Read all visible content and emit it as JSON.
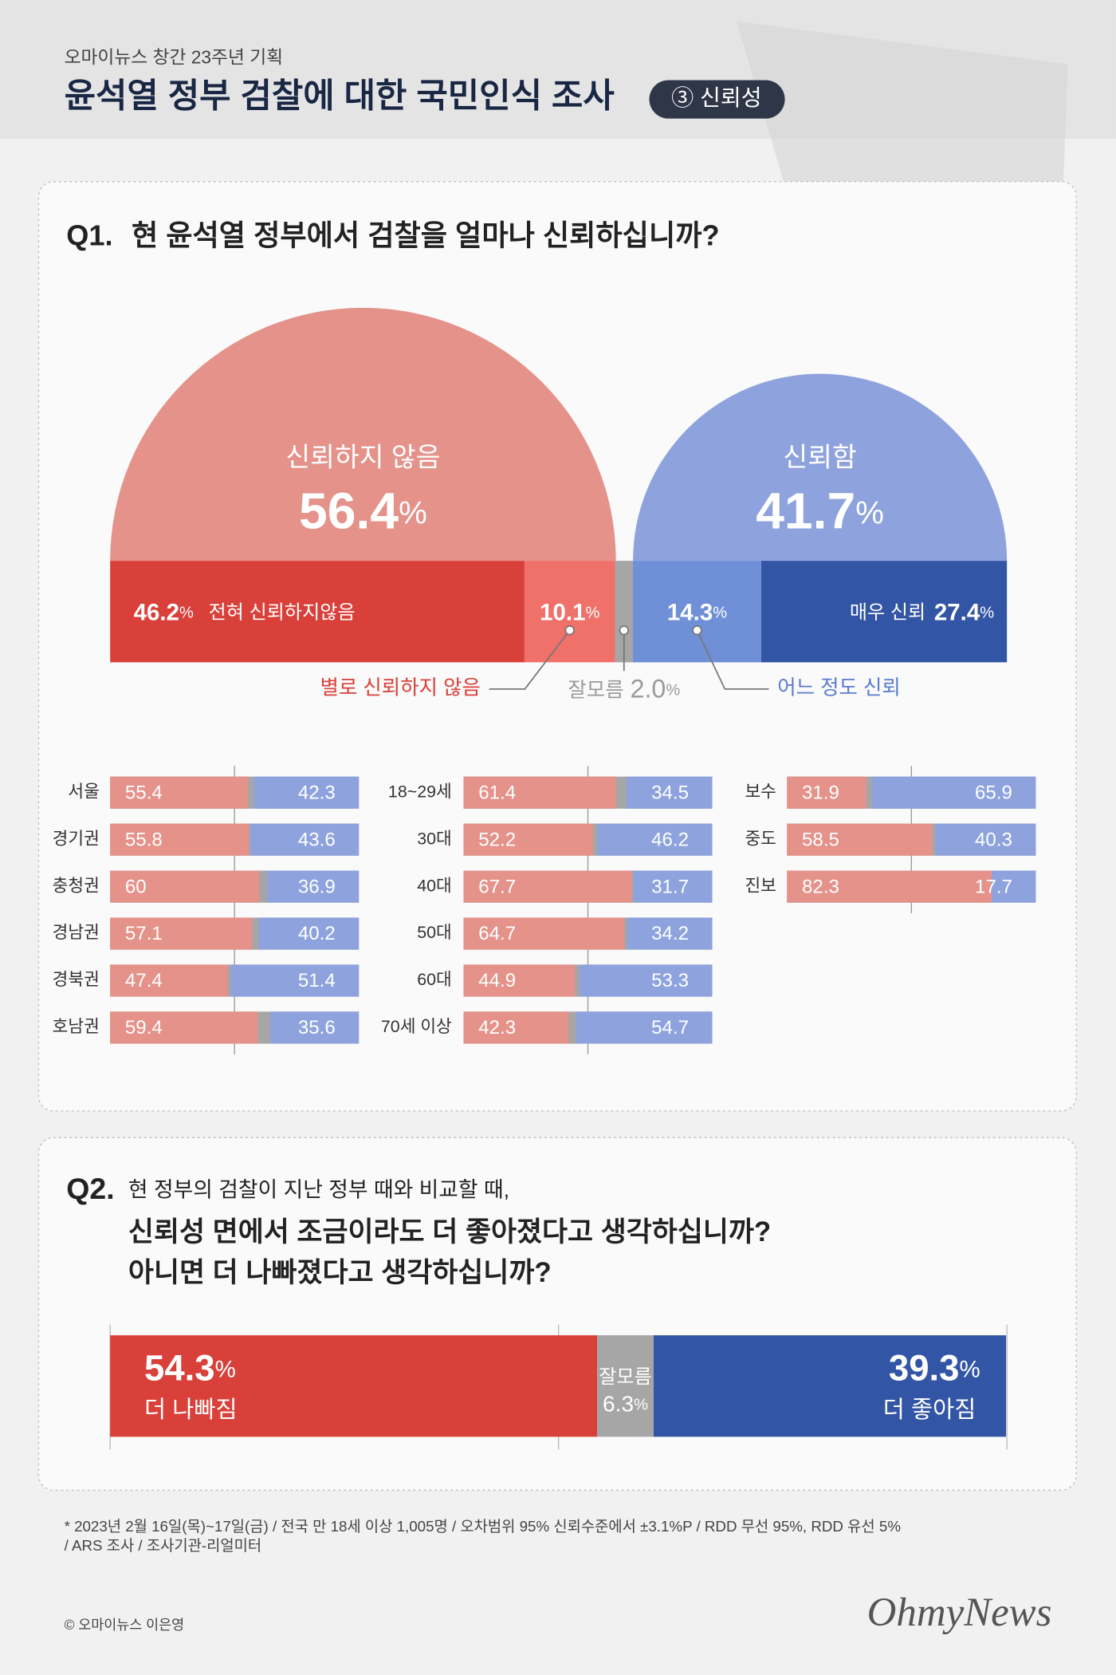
{
  "header": {
    "kicker": "오마이뉴스 창간 23주년 기획",
    "title": "윤석열 정부 검찰에 대한 국민인식 조사",
    "badge": "③ 신뢰성"
  },
  "chart_data": [
    {
      "type": "split-bar",
      "label": "Q1.",
      "title": "현 윤석열 정부에서 검찰을 얼마나 신뢰하십니까?",
      "unit": "%",
      "groups": [
        {
          "name": "신뢰하지 않음",
          "value": 56.4,
          "color": "#e4928a"
        },
        {
          "name": "신뢰함",
          "value": 41.7,
          "color": "#8ea3dd"
        }
      ],
      "categories": [
        "전혀 신뢰하지않음",
        "별로 신뢰하지 않음",
        "잘모름",
        "어느 정도 신뢰",
        "매우 신뢰"
      ],
      "values": [
        46.2,
        10.1,
        2.0,
        14.3,
        27.4
      ],
      "value_labels": [
        "46.2",
        "10.1",
        "2.0",
        "14.3",
        "27.4"
      ],
      "colors": [
        "#d9403a",
        "#f0706a",
        "#a6a6a6",
        "#6f8fd6",
        "#3355a5"
      ],
      "xlim": [
        0,
        100
      ]
    },
    {
      "type": "stacked-bar",
      "categories": [
        "서울",
        "경기권",
        "충청권",
        "경남권",
        "경북권",
        "호남권"
      ],
      "series": [
        {
          "color": "#e4928a",
          "values": [
            55.4,
            55.8,
            60,
            57.1,
            47.4,
            59.4
          ]
        },
        {
          "color": "#8ea3dd",
          "values": [
            42.3,
            43.6,
            36.9,
            40.2,
            51.4,
            35.6
          ]
        }
      ],
      "xlim": [
        0,
        100
      ]
    },
    {
      "type": "stacked-bar",
      "categories": [
        "18~29세",
        "30대",
        "40대",
        "50대",
        "60대",
        "70세 이상"
      ],
      "series": [
        {
          "color": "#e4928a",
          "values": [
            61.4,
            52.2,
            67.7,
            64.7,
            44.9,
            42.3
          ]
        },
        {
          "color": "#8ea3dd",
          "values": [
            34.5,
            46.2,
            31.7,
            34.2,
            53.3,
            54.7
          ]
        }
      ],
      "xlim": [
        0,
        100
      ]
    },
    {
      "type": "stacked-bar",
      "categories": [
        "보수",
        "중도",
        "진보"
      ],
      "series": [
        {
          "color": "#e4928a",
          "values": [
            31.9,
            58.5,
            82.3
          ]
        },
        {
          "color": "#8ea3dd",
          "values": [
            65.9,
            40.3,
            17.7
          ]
        }
      ],
      "xlim": [
        0,
        100
      ]
    },
    {
      "type": "single-stack",
      "label": "Q2.",
      "unit": "%",
      "title_lines": [
        "현 정부의 검찰이 지난 정부 때와 비교할 때,",
        "신뢰성 면에서 조금이라도 더 좋아졌다고 생각하십니까?",
        "아니면 더 나빠졌다고 생각하십니까?"
      ],
      "categories": [
        "더 나빠짐",
        "잘모름",
        "더 좋아짐"
      ],
      "values": [
        54.3,
        6.3,
        39.3
      ],
      "colors": [
        "#d9403a",
        "#a6a6a6",
        "#3355a5"
      ],
      "xlim": [
        0,
        100
      ]
    }
  ],
  "footnote": [
    "* 2023년 2월 16일(목)~17일(금) / 전국 만 18세 이상 1,005명 / 오차범위 95% 신뢰수준에서 ±3.1%P / RDD 무선 95%,  RDD 유선 5%",
    "/ ARS 조사 / 조사기관-리얼미터"
  ],
  "credit": "© 오마이뉴스 이은영",
  "logo": "OhmyNews"
}
